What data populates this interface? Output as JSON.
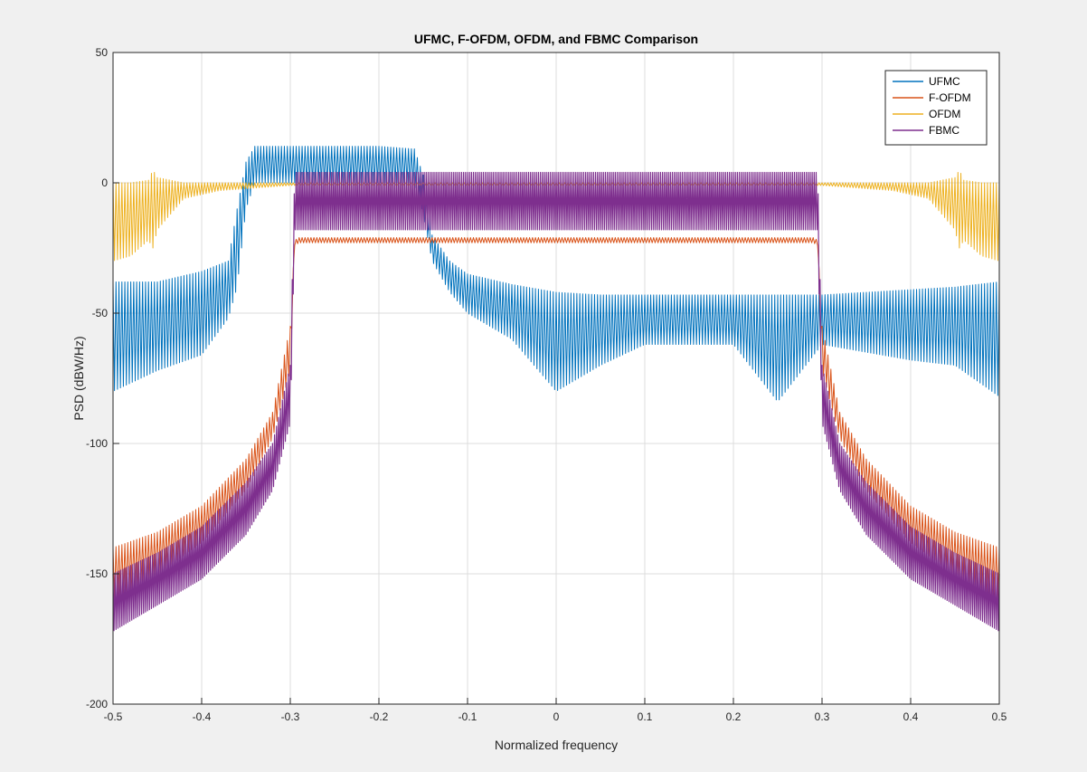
{
  "chart_data": {
    "type": "line",
    "title": "UFMC, F-OFDM, OFDM, and FBMC Comparison",
    "xlabel": "Normalized frequency",
    "ylabel": "PSD (dBW/Hz)",
    "xlim": [
      -0.5,
      0.5
    ],
    "ylim": [
      -200,
      50
    ],
    "xticks": [
      -0.5,
      -0.4,
      -0.3,
      -0.2,
      -0.1,
      0,
      0.1,
      0.2,
      0.3,
      0.4,
      0.5
    ],
    "xtick_labels": [
      "-0.5",
      "-0.4",
      "-0.3",
      "-0.2",
      "-0.1",
      "0",
      "0.1",
      "0.2",
      "0.3",
      "0.4",
      "0.5"
    ],
    "yticks": [
      -200,
      -150,
      -100,
      -50,
      0,
      50
    ],
    "ytick_labels": [
      "-200",
      "-150",
      "-100",
      "-50",
      "0",
      "50"
    ],
    "grid": true,
    "legend_position": "top-right",
    "series": [
      {
        "name": "UFMC",
        "color": "#0072BD",
        "x": [
          -0.5,
          -0.45,
          -0.4,
          -0.37,
          -0.36,
          -0.35,
          -0.34,
          -0.3,
          -0.25,
          -0.2,
          -0.16,
          -0.15,
          -0.14,
          -0.12,
          -0.1,
          -0.05,
          0,
          0.05,
          0.1,
          0.2,
          0.25,
          0.3,
          0.4,
          0.45,
          0.5
        ],
        "upper": [
          -38,
          -38,
          -34,
          -30,
          -10,
          8,
          14,
          14,
          14,
          14,
          13,
          3,
          -20,
          -30,
          -35,
          -39,
          -42,
          -43,
          -43,
          -43,
          -43,
          -43,
          -41,
          -40,
          -38
        ],
        "lower": [
          -80,
          -72,
          -66,
          -52,
          -40,
          -10,
          0,
          0,
          0,
          0,
          0,
          -12,
          -30,
          -42,
          -50,
          -60,
          -80,
          -70,
          -62,
          -62,
          -84,
          -62,
          -68,
          -70,
          -82
        ]
      },
      {
        "name": "F-OFDM",
        "color": "#D95319",
        "x": [
          -0.5,
          -0.45,
          -0.4,
          -0.35,
          -0.32,
          -0.3,
          -0.295,
          -0.29,
          -0.2,
          -0.1,
          0,
          0.1,
          0.2,
          0.29,
          0.295,
          0.3,
          0.32,
          0.35,
          0.4,
          0.45,
          0.5
        ],
        "upper": [
          -140,
          -134,
          -124,
          -106,
          -88,
          -55,
          -22,
          -21,
          -21,
          -21,
          -21,
          -21,
          -21,
          -21,
          -22,
          -55,
          -88,
          -106,
          -124,
          -134,
          -140
        ],
        "lower": [
          -160,
          -150,
          -138,
          -118,
          -98,
          -72,
          -24,
          -23,
          -23,
          -23,
          -23,
          -23,
          -23,
          -23,
          -24,
          -72,
          -98,
          -118,
          -138,
          -150,
          -160
        ]
      },
      {
        "name": "OFDM",
        "color": "#EDB120",
        "x": [
          -0.5,
          -0.48,
          -0.46,
          -0.455,
          -0.45,
          -0.42,
          -0.38,
          -0.34,
          -0.3,
          0.3,
          0.34,
          0.38,
          0.42,
          0.45,
          0.455,
          0.46,
          0.48,
          0.5
        ],
        "upper": [
          0,
          0,
          1,
          5,
          2,
          0,
          0,
          0,
          0,
          0,
          0,
          0,
          0,
          2,
          5,
          1,
          0,
          0
        ],
        "lower": [
          -30,
          -28,
          -22,
          -25,
          -18,
          -6,
          -3,
          -2,
          -1,
          -1,
          -2,
          -3,
          -6,
          -18,
          -25,
          -22,
          -28,
          -30
        ]
      },
      {
        "name": "FBMC",
        "color": "#7E2F8E",
        "x": [
          -0.5,
          -0.45,
          -0.4,
          -0.35,
          -0.32,
          -0.3,
          -0.295,
          -0.29,
          -0.2,
          -0.1,
          0,
          0.1,
          0.2,
          0.29,
          0.295,
          0.3,
          0.32,
          0.35,
          0.4,
          0.45,
          0.5
        ],
        "upper": [
          -150,
          -142,
          -132,
          -115,
          -100,
          -70,
          4,
          4,
          4,
          4,
          4,
          4,
          4,
          4,
          4,
          -70,
          -100,
          -115,
          -132,
          -142,
          -150
        ],
        "lower": [
          -172,
          -162,
          -152,
          -135,
          -118,
          -92,
          -18,
          -18,
          -18,
          -18,
          -18,
          -18,
          -18,
          -18,
          -18,
          -92,
          -118,
          -135,
          -152,
          -162,
          -172
        ]
      }
    ]
  }
}
